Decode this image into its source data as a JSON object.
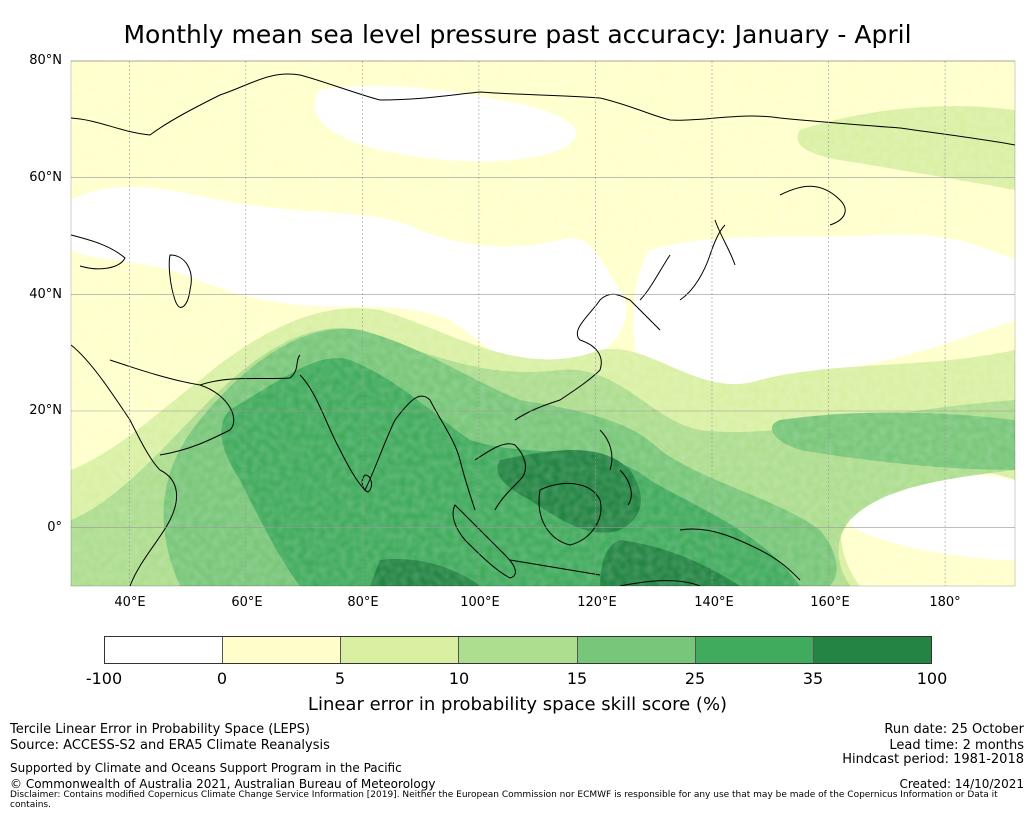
{
  "title": "Monthly mean sea level pressure past accuracy: January - April",
  "map": {
    "lat_labels": [
      "80°N",
      "60°N",
      "40°N",
      "20°N",
      "0°"
    ],
    "lon_labels": [
      "40°E",
      "60°E",
      "80°E",
      "100°E",
      "120°E",
      "140°E",
      "160°E",
      "180°"
    ],
    "extent": {
      "lon_min": 30,
      "lon_max": 192,
      "lat_min": -10,
      "lat_max": 80
    },
    "colors": {
      "land_outline": "#000000",
      "grid": "#999999"
    }
  },
  "colorbar": {
    "colors": [
      "#ffffff",
      "#ffffcc",
      "#d9f0a3",
      "#addd8e",
      "#78c679",
      "#41ab5d",
      "#238443"
    ],
    "ticks": [
      "-100",
      "0",
      "5",
      "10",
      "15",
      "25",
      "35",
      "100"
    ],
    "label": "Linear error in probability space skill score (%)"
  },
  "footer": {
    "left_line1": "Tercile Linear Error in Probability Space (LEPS)",
    "left_line2": "Source: ACCESS-S2 and ERA5 Climate Reanalysis",
    "left_line3": "Supported by Climate and Oceans Support Program in the Pacific",
    "left_line4": "© Commonwealth of Australia 2021, Australian Bureau of Meteorology",
    "right_line1": "Run date: 25 October",
    "right_line2": "Lead time: 2 months",
    "right_line3": "Hindcast period: 1981-2018",
    "right_line4": "Created: 14/10/2021",
    "disclaimer": "Disclaimer: Contains modified Copernicus Climate Change Service Information [2019]. Neither the European Commission nor ECMWF is responsible for any use that may be made of the Copernicus Information or Data it contains."
  }
}
